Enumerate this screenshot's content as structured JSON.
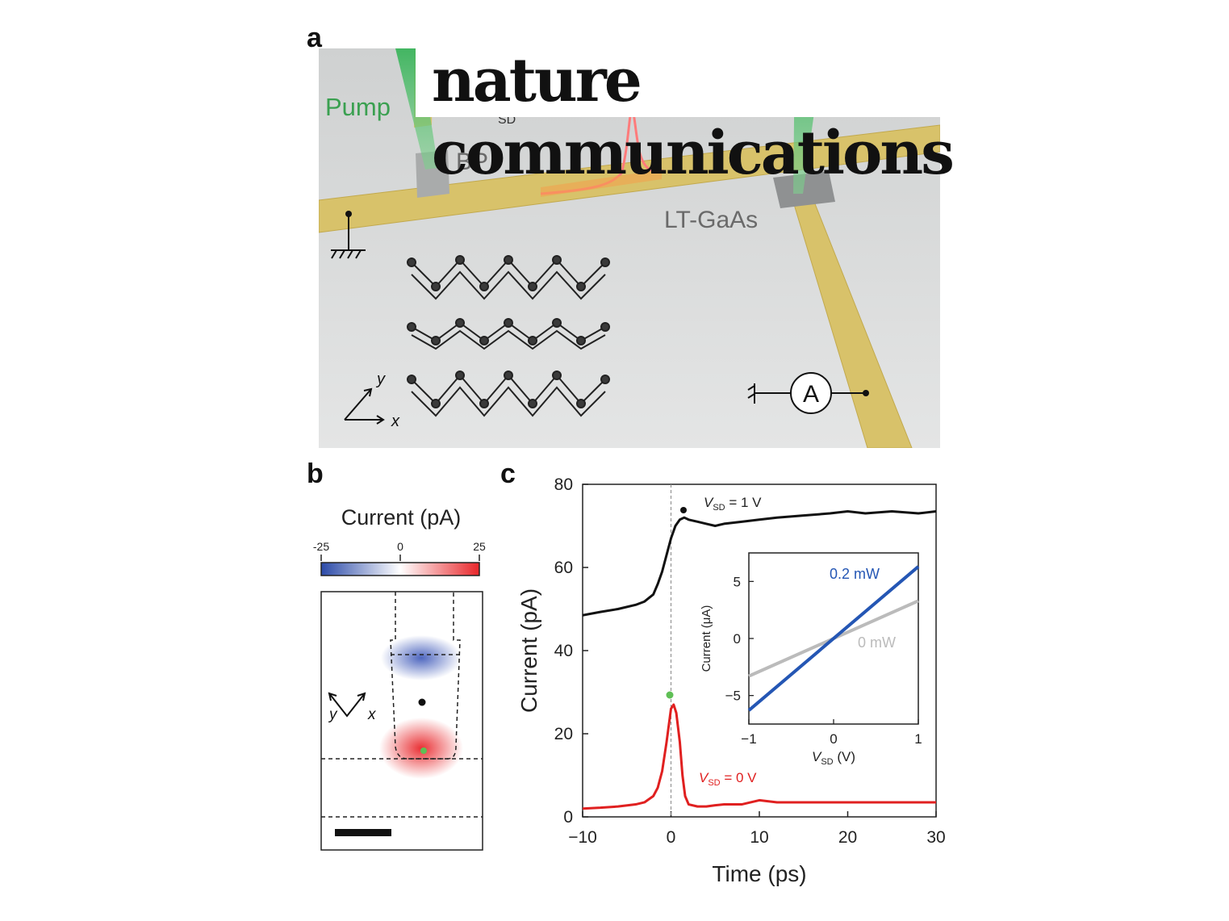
{
  "logo": {
    "text": "nature communications"
  },
  "panel_a": {
    "letter": "a",
    "labels": {
      "pump": "Pump",
      "vsd_sub": "SD",
      "bp": "BP",
      "ltgaas": "LT-GaAs",
      "ammeter": "A",
      "axis_x": "x",
      "axis_y": "y"
    }
  },
  "panel_b": {
    "letter": "b",
    "colorbar": {
      "title": "Current (pA)",
      "ticks": [
        "-25",
        "0",
        "25"
      ],
      "colors": [
        "#2b4aa8",
        "#ffffff",
        "#e8262a"
      ]
    },
    "axis_x": "x",
    "axis_y": "y"
  },
  "panel_c": {
    "letter": "c",
    "chart_data": [
      {
        "type": "line",
        "xlabel": "Time (ps)",
        "ylabel": "Current (pA)",
        "xlim": [
          -10,
          30
        ],
        "ylim": [
          0,
          80
        ],
        "xticks": [
          "−10",
          "0",
          "10",
          "20",
          "30"
        ],
        "yticks": [
          "0",
          "20",
          "40",
          "60",
          "80"
        ],
        "series": [
          {
            "name_main": "V",
            "name_sub": "SD",
            "name_rest": " = 1 V",
            "color": "#111111",
            "x": [
              -10,
              -8,
              -6,
              -4,
              -3,
              -2,
              -1.5,
              -1,
              -0.5,
              0,
              0.5,
              1,
              1.5,
              2,
              3,
              4,
              5,
              6,
              8,
              10,
              12,
              15,
              18,
              20,
              22,
              25,
              28,
              30
            ],
            "y": [
              48.5,
              49.3,
              50,
              51,
              51.8,
              53.5,
              56,
              59,
              63,
              67,
              70,
              71.5,
              72,
              71.5,
              71,
              70.5,
              70,
              70.5,
              71,
              71.5,
              72,
              72.5,
              73,
              73.5,
              73,
              73.5,
              73,
              73.5
            ]
          },
          {
            "name_main": "V",
            "name_sub": "SD",
            "name_rest": " = 0 V",
            "color": "#e02020",
            "x": [
              -10,
              -8,
              -6,
              -4,
              -3,
              -2,
              -1.5,
              -1,
              -0.5,
              0,
              0.3,
              0.6,
              1,
              1.3,
              1.6,
              2,
              3,
              4,
              5,
              6,
              8,
              10,
              12,
              15,
              18,
              20,
              22,
              25,
              28,
              30
            ],
            "y": [
              2,
              2.2,
              2.5,
              3,
              3.5,
              5,
              7,
              11,
              18,
              26,
              27,
              25,
              18,
              10,
              5,
              3,
              2.5,
              2.5,
              2.8,
              3,
              3,
              4,
              3.5,
              3.5,
              3.5,
              3.5,
              3.5,
              3.5,
              3.5,
              3.5
            ]
          }
        ]
      },
      {
        "type": "line",
        "xlabel_main": "V",
        "xlabel_sub": "SD",
        "xlabel_rest": " (V)",
        "ylabel": "Current (μA)",
        "xlim": [
          -1,
          1
        ],
        "ylim": [
          -7.5,
          7.5
        ],
        "xticks": [
          "−1",
          "0",
          "1"
        ],
        "yticks": [
          "−5",
          "0",
          "5"
        ],
        "series": [
          {
            "name": "0.2 mW",
            "color": "#2456b4",
            "x": [
              -1,
              1
            ],
            "y": [
              -6.3,
              6.3
            ]
          },
          {
            "name": "0 mW",
            "color": "#bbbbbb",
            "x": [
              -1,
              1
            ],
            "y": [
              -3.3,
              3.3
            ]
          }
        ]
      }
    ]
  }
}
